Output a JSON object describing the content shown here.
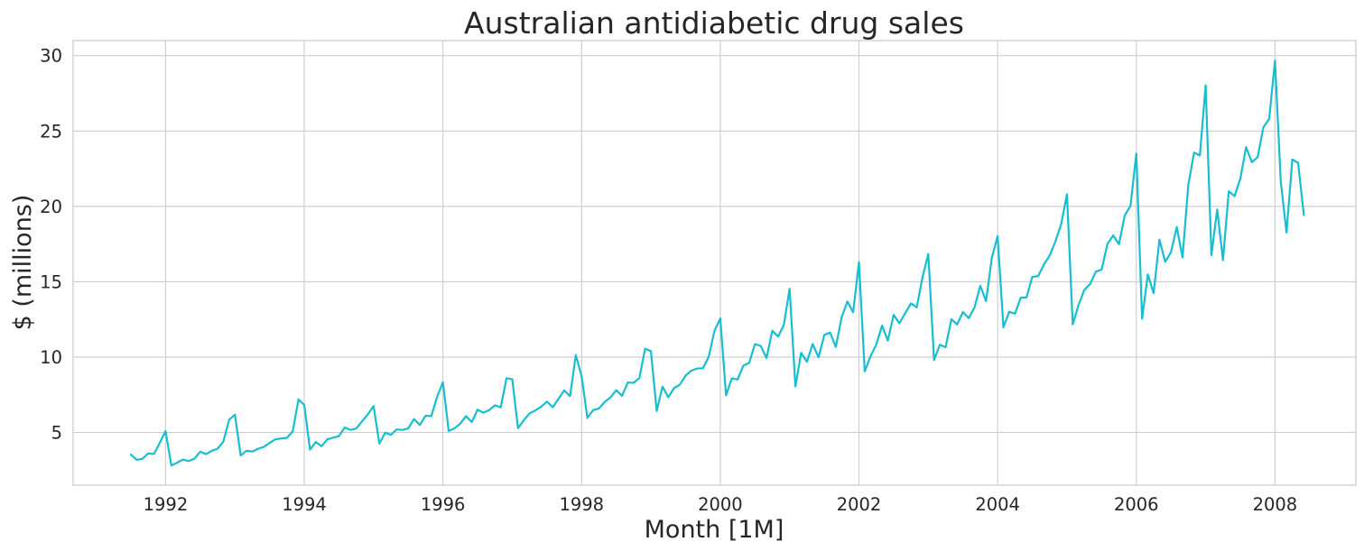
{
  "chart_data": {
    "type": "line",
    "title": "Australian antidiabetic drug sales",
    "xlabel": "Month [1M]",
    "ylabel": "$ (millions)",
    "x_ticks": [
      "1992",
      "1994",
      "1996",
      "1998",
      "2000",
      "2002",
      "2004",
      "2006",
      "2008"
    ],
    "y_ticks": [
      5,
      10,
      15,
      20,
      25,
      30
    ],
    "xlim": [
      "1990-09",
      "2009-03"
    ],
    "ylim": [
      1.5,
      31
    ],
    "grid": true,
    "legend": "none",
    "series": [
      {
        "color": "#17becf",
        "x": [
          "1991-07",
          "1991-08",
          "1991-09",
          "1991-10",
          "1991-11",
          "1991-12",
          "1992-01",
          "1992-02",
          "1992-03",
          "1992-04",
          "1992-05",
          "1992-06",
          "1992-07",
          "1992-08",
          "1992-09",
          "1992-10",
          "1992-11",
          "1992-12",
          "1993-01",
          "1993-02",
          "1993-03",
          "1993-04",
          "1993-05",
          "1993-06",
          "1993-07",
          "1993-08",
          "1993-09",
          "1993-10",
          "1993-11",
          "1993-12",
          "1994-01",
          "1994-02",
          "1994-03",
          "1994-04",
          "1994-05",
          "1994-06",
          "1994-07",
          "1994-08",
          "1994-09",
          "1994-10",
          "1994-11",
          "1994-12",
          "1995-01",
          "1995-02",
          "1995-03",
          "1995-04",
          "1995-05",
          "1995-06",
          "1995-07",
          "1995-08",
          "1995-09",
          "1995-10",
          "1995-11",
          "1995-12",
          "1996-01",
          "1996-02",
          "1996-03",
          "1996-04",
          "1996-05",
          "1996-06",
          "1996-07",
          "1996-08",
          "1996-09",
          "1996-10",
          "1996-11",
          "1996-12",
          "1997-01",
          "1997-02",
          "1997-03",
          "1997-04",
          "1997-05",
          "1997-06",
          "1997-07",
          "1997-08",
          "1997-09",
          "1997-10",
          "1997-11",
          "1997-12",
          "1998-01",
          "1998-02",
          "1998-03",
          "1998-04",
          "1998-05",
          "1998-06",
          "1998-07",
          "1998-08",
          "1998-09",
          "1998-10",
          "1998-11",
          "1998-12",
          "1999-01",
          "1999-02",
          "1999-03",
          "1999-04",
          "1999-05",
          "1999-06",
          "1999-07",
          "1999-08",
          "1999-09",
          "1999-10",
          "1999-11",
          "1999-12",
          "2000-01",
          "2000-02",
          "2000-03",
          "2000-04",
          "2000-05",
          "2000-06",
          "2000-07",
          "2000-08",
          "2000-09",
          "2000-10",
          "2000-11",
          "2000-12",
          "2001-01",
          "2001-02",
          "2001-03",
          "2001-04",
          "2001-05",
          "2001-06",
          "2001-07",
          "2001-08",
          "2001-09",
          "2001-10",
          "2001-11",
          "2001-12",
          "2002-01",
          "2002-02",
          "2002-03",
          "2002-04",
          "2002-05",
          "2002-06",
          "2002-07",
          "2002-08",
          "2002-09",
          "2002-10",
          "2002-11",
          "2002-12",
          "2003-01",
          "2003-02",
          "2003-03",
          "2003-04",
          "2003-05",
          "2003-06",
          "2003-07",
          "2003-08",
          "2003-09",
          "2003-10",
          "2003-11",
          "2003-12",
          "2004-01",
          "2004-02",
          "2004-03",
          "2004-04",
          "2004-05",
          "2004-06",
          "2004-07",
          "2004-08",
          "2004-09",
          "2004-10",
          "2004-11",
          "2004-12",
          "2005-01",
          "2005-02",
          "2005-03",
          "2005-04",
          "2005-05",
          "2005-06",
          "2005-07",
          "2005-08",
          "2005-09",
          "2005-10",
          "2005-11",
          "2005-12",
          "2006-01",
          "2006-02",
          "2006-03",
          "2006-04",
          "2006-05",
          "2006-06",
          "2006-07",
          "2006-08",
          "2006-09",
          "2006-10",
          "2006-11",
          "2006-12",
          "2007-01",
          "2007-02",
          "2007-03",
          "2007-04",
          "2007-05",
          "2007-06",
          "2007-07",
          "2007-08",
          "2007-09",
          "2007-10",
          "2007-11",
          "2007-12",
          "2008-01",
          "2008-02",
          "2008-03",
          "2008-04",
          "2008-05",
          "2008-06"
        ],
        "y": [
          3.53,
          3.18,
          3.25,
          3.61,
          3.57,
          4.31,
          5.09,
          2.81,
          2.99,
          3.2,
          3.1,
          3.26,
          3.72,
          3.56,
          3.78,
          3.92,
          4.39,
          5.84,
          6.18,
          3.47,
          3.78,
          3.73,
          3.91,
          4.04,
          4.3,
          4.54,
          4.6,
          4.64,
          5.06,
          7.19,
          6.82,
          3.86,
          4.36,
          4.09,
          4.54,
          4.65,
          4.75,
          5.33,
          5.17,
          5.26,
          5.73,
          6.2,
          6.75,
          4.26,
          4.98,
          4.84,
          5.2,
          5.16,
          5.27,
          5.89,
          5.49,
          6.11,
          6.08,
          7.37,
          8.32,
          5.1,
          5.27,
          5.58,
          6.08,
          5.69,
          6.51,
          6.31,
          6.48,
          6.8,
          6.66,
          8.6,
          8.53,
          5.28,
          5.81,
          6.26,
          6.46,
          6.7,
          7.05,
          6.67,
          7.23,
          7.79,
          7.41,
          10.13,
          8.73,
          5.96,
          6.48,
          6.59,
          7.02,
          7.33,
          7.8,
          7.43,
          8.31,
          8.29,
          8.61,
          10.56,
          10.39,
          6.42,
          8.04,
          7.33,
          7.94,
          8.17,
          8.77,
          9.1,
          9.24,
          9.26,
          10.01,
          11.74,
          12.56,
          7.46,
          8.59,
          8.51,
          9.44,
          9.61,
          10.86,
          10.74,
          9.93,
          11.75,
          11.36,
          12.13,
          14.53,
          8.05,
          10.28,
          9.69,
          10.87,
          9.98,
          11.46,
          11.63,
          10.67,
          12.64,
          13.69,
          12.97,
          16.3,
          9.05,
          10.04,
          10.83,
          12.09,
          11.09,
          12.8,
          12.24,
          12.91,
          13.56,
          13.3,
          15.29,
          16.84,
          9.8,
          10.82,
          10.65,
          12.51,
          12.16,
          12.99,
          12.58,
          13.29,
          14.73,
          13.71,
          16.6,
          18.02,
          11.97,
          13.0,
          12.88,
          13.94,
          13.96,
          15.32,
          15.37,
          16.13,
          16.73,
          17.67,
          18.83,
          20.8,
          12.17,
          13.45,
          14.45,
          14.84,
          15.67,
          15.8,
          17.5,
          18.07,
          17.49,
          19.4,
          20.04,
          23.5,
          12.54,
          15.48,
          14.24,
          17.79,
          16.32,
          16.95,
          18.63,
          16.61,
          21.43,
          23.57,
          23.37,
          28.04,
          16.76,
          19.79,
          16.43,
          21.0,
          20.68,
          21.83,
          23.93,
          22.93,
          23.26,
          25.25,
          25.81,
          29.67,
          21.65,
          18.26,
          23.11,
          22.89,
          19.43
        ]
      }
    ]
  }
}
